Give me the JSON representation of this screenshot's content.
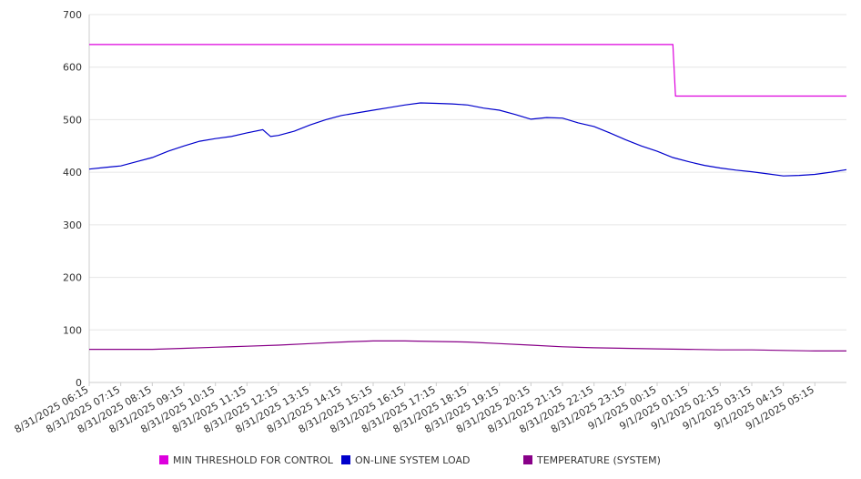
{
  "chart_data": {
    "type": "line",
    "title": "",
    "xlabel": "",
    "ylabel": "",
    "ylim": [
      0,
      700
    ],
    "yticks": [
      0,
      100,
      200,
      300,
      400,
      500,
      600,
      700
    ],
    "grid": true,
    "legend_position": "bottom",
    "x_tick_labels": [
      "8/31/2025 06:15",
      "8/31/2025 07:15",
      "8/31/2025 08:15",
      "8/31/2025 09:15",
      "8/31/2025 10:15",
      "8/31/2025 11:15",
      "8/31/2025 12:15",
      "8/31/2025 13:15",
      "8/31/2025 14:15",
      "8/31/2025 15:15",
      "8/31/2025 16:15",
      "8/31/2025 17:15",
      "8/31/2025 18:15",
      "8/31/2025 19:15",
      "8/31/2025 20:15",
      "8/31/2025 21:15",
      "8/31/2025 22:15",
      "8/31/2025 23:15",
      "9/1/2025 00:15",
      "9/1/2025 01:15",
      "9/1/2025 02:15",
      "9/1/2025 03:15",
      "9/1/2025 04:15",
      "9/1/2025 05:15"
    ],
    "x_range": [
      "8/31/2025 06:15",
      "9/1/2025 06:15"
    ],
    "series": [
      {
        "name": "MIN THRESHOLD FOR CONTROL",
        "color": "#dd00dd",
        "points": [
          [
            "8/31/2025 06:15",
            643
          ],
          [
            "8/31/2025 07:15",
            643
          ],
          [
            "8/31/2025 08:15",
            643
          ],
          [
            "8/31/2025 09:15",
            643
          ],
          [
            "8/31/2025 10:15",
            643
          ],
          [
            "8/31/2025 11:15",
            643
          ],
          [
            "8/31/2025 12:15",
            643
          ],
          [
            "8/31/2025 13:15",
            643
          ],
          [
            "8/31/2025 14:15",
            643
          ],
          [
            "8/31/2025 15:15",
            643
          ],
          [
            "8/31/2025 16:15",
            643
          ],
          [
            "8/31/2025 17:15",
            643
          ],
          [
            "8/31/2025 18:15",
            643
          ],
          [
            "8/31/2025 19:15",
            643
          ],
          [
            "8/31/2025 20:15",
            643
          ],
          [
            "8/31/2025 21:15",
            643
          ],
          [
            "8/31/2025 22:15",
            643
          ],
          [
            "8/31/2025 23:15",
            643
          ],
          [
            "9/1/2025 00:15",
            643
          ],
          [
            "9/1/2025 00:45",
            643
          ],
          [
            "9/1/2025 00:50",
            545
          ],
          [
            "9/1/2025 01:15",
            545
          ],
          [
            "9/1/2025 02:15",
            545
          ],
          [
            "9/1/2025 03:15",
            545
          ],
          [
            "9/1/2025 04:15",
            545
          ],
          [
            "9/1/2025 05:15",
            545
          ],
          [
            "9/1/2025 06:15",
            545
          ]
        ]
      },
      {
        "name": "ON-LINE SYSTEM LOAD",
        "color": "#0000cc",
        "points": [
          [
            "8/31/2025 06:15",
            406
          ],
          [
            "8/31/2025 06:45",
            409
          ],
          [
            "8/31/2025 07:15",
            412
          ],
          [
            "8/31/2025 07:45",
            420
          ],
          [
            "8/31/2025 08:15",
            428
          ],
          [
            "8/31/2025 08:45",
            440
          ],
          [
            "8/31/2025 09:15",
            450
          ],
          [
            "8/31/2025 09:45",
            459
          ],
          [
            "8/31/2025 10:15",
            464
          ],
          [
            "8/31/2025 10:45",
            468
          ],
          [
            "8/31/2025 11:15",
            475
          ],
          [
            "8/31/2025 11:45",
            481
          ],
          [
            "8/31/2025 12:00",
            468
          ],
          [
            "8/31/2025 12:15",
            470
          ],
          [
            "8/31/2025 12:45",
            478
          ],
          [
            "8/31/2025 13:15",
            490
          ],
          [
            "8/31/2025 13:45",
            500
          ],
          [
            "8/31/2025 14:15",
            508
          ],
          [
            "8/31/2025 14:45",
            513
          ],
          [
            "8/31/2025 15:15",
            518
          ],
          [
            "8/31/2025 15:45",
            523
          ],
          [
            "8/31/2025 16:15",
            528
          ],
          [
            "8/31/2025 16:45",
            532
          ],
          [
            "8/31/2025 17:15",
            531
          ],
          [
            "8/31/2025 17:45",
            530
          ],
          [
            "8/31/2025 18:15",
            528
          ],
          [
            "8/31/2025 18:45",
            522
          ],
          [
            "8/31/2025 19:15",
            518
          ],
          [
            "8/31/2025 19:45",
            510
          ],
          [
            "8/31/2025 20:15",
            501
          ],
          [
            "8/31/2025 20:45",
            504
          ],
          [
            "8/31/2025 21:15",
            503
          ],
          [
            "8/31/2025 21:45",
            494
          ],
          [
            "8/31/2025 22:15",
            487
          ],
          [
            "8/31/2025 22:45",
            475
          ],
          [
            "8/31/2025 23:15",
            462
          ],
          [
            "8/31/2025 23:45",
            450
          ],
          [
            "9/1/2025 00:15",
            440
          ],
          [
            "9/1/2025 00:45",
            428
          ],
          [
            "9/1/2025 01:15",
            420
          ],
          [
            "9/1/2025 01:45",
            413
          ],
          [
            "9/1/2025 02:15",
            408
          ],
          [
            "9/1/2025 02:45",
            404
          ],
          [
            "9/1/2025 03:15",
            401
          ],
          [
            "9/1/2025 03:45",
            397
          ],
          [
            "9/1/2025 04:15",
            393
          ],
          [
            "9/1/2025 04:45",
            394
          ],
          [
            "9/1/2025 05:15",
            396
          ],
          [
            "9/1/2025 05:45",
            400
          ],
          [
            "9/1/2025 06:15",
            405
          ]
        ]
      },
      {
        "name": "TEMPERATURE (SYSTEM)",
        "color": "#880088",
        "points": [
          [
            "8/31/2025 06:15",
            63
          ],
          [
            "8/31/2025 07:15",
            63
          ],
          [
            "8/31/2025 08:15",
            63
          ],
          [
            "8/31/2025 09:15",
            65
          ],
          [
            "8/31/2025 10:15",
            67
          ],
          [
            "8/31/2025 11:15",
            69
          ],
          [
            "8/31/2025 12:15",
            71
          ],
          [
            "8/31/2025 13:15",
            74
          ],
          [
            "8/31/2025 14:15",
            77
          ],
          [
            "8/31/2025 15:15",
            79
          ],
          [
            "8/31/2025 16:15",
            79
          ],
          [
            "8/31/2025 17:15",
            78
          ],
          [
            "8/31/2025 18:15",
            77
          ],
          [
            "8/31/2025 19:15",
            74
          ],
          [
            "8/31/2025 20:15",
            71
          ],
          [
            "8/31/2025 21:15",
            68
          ],
          [
            "8/31/2025 22:15",
            66
          ],
          [
            "8/31/2025 23:15",
            65
          ],
          [
            "9/1/2025 00:15",
            64
          ],
          [
            "9/1/2025 01:15",
            63
          ],
          [
            "9/1/2025 02:15",
            62
          ],
          [
            "9/1/2025 03:15",
            62
          ],
          [
            "9/1/2025 04:15",
            61
          ],
          [
            "9/1/2025 05:15",
            60
          ],
          [
            "9/1/2025 06:15",
            60
          ]
        ]
      }
    ]
  }
}
